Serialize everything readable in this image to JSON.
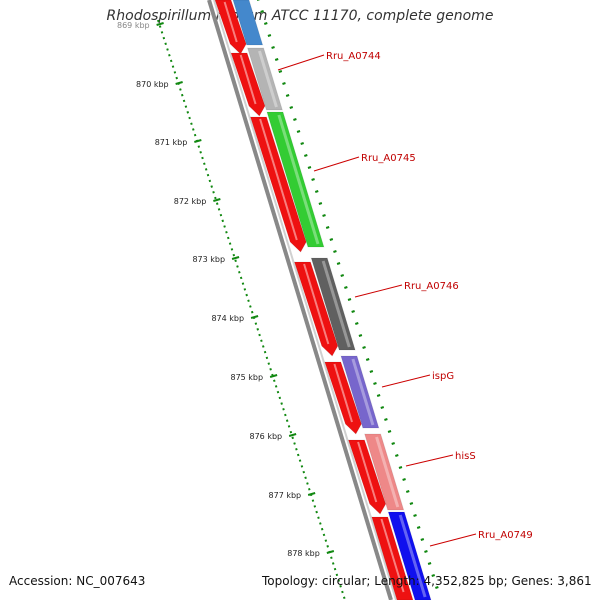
{
  "title": "Rhodospirillum rubrum ATCC 11170, complete genome",
  "accession": "Accession: NC_007643",
  "summary": "Topology: circular; Length: 4,352,825 bp; Genes: 3,861",
  "ticks": [
    "869 kbp",
    "870 kbp",
    "871 kbp",
    "872 kbp",
    "873 kbp",
    "874 kbp",
    "875 kbp",
    "876 kbp",
    "877 kbp",
    "878 kbp"
  ],
  "genes": [
    {
      "name": "Rru_A0744",
      "color": "#b4b4b4"
    },
    {
      "name": "Rru_A0745",
      "color": "#33cc33"
    },
    {
      "name": "Rru_A0746",
      "color": "#606060"
    },
    {
      "name": "ispG",
      "color": "#7766cc"
    },
    {
      "name": "hisS",
      "color": "#ee8888"
    },
    {
      "name": "Rru_A0749",
      "color": "#1010ee"
    }
  ],
  "colors": {
    "forward_strand": "#ee1111",
    "backbone": "#777777",
    "tick": "#118811",
    "label": "#cc0000",
    "top_partial_gene": "#4488cc"
  }
}
